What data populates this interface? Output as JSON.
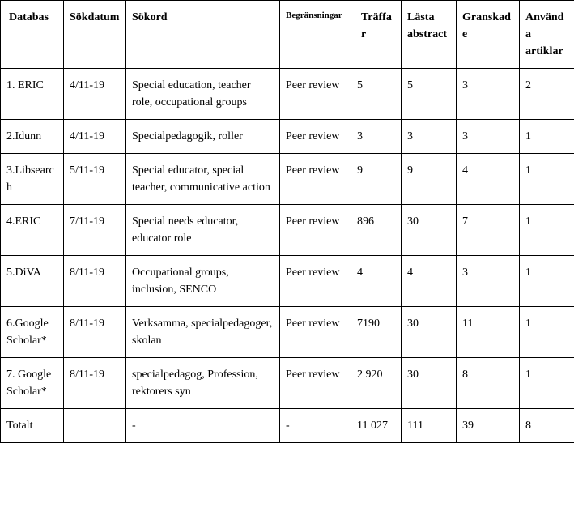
{
  "table": {
    "headers": {
      "databas": "Databas",
      "sokdatum": "Sökdatum",
      "sokord": "Sökord",
      "begransningar": "Begränsningar",
      "traffar": " Träffar",
      "lasta_line1": " Lästa",
      "lasta_line2": "abstract",
      "granskade": "Granskade",
      "anvanda_line1": "Använda",
      "anvanda_line2": "artiklar"
    },
    "rows": [
      {
        "databas": "1. ERIC",
        "sokdatum": "4/11-19",
        "sokord": "Special education, teacher role, occupational groups",
        "begransningar": "Peer review",
        "traffar": "5",
        "lasta": "5",
        "granskade": "3",
        "anvanda": "2"
      },
      {
        "databas": "2.Idunn",
        "sokdatum": "4/11-19",
        "sokord": "Specialpedagogik, roller",
        "begransningar": "Peer review",
        "traffar": "3",
        "lasta": "3",
        "granskade": "3",
        "anvanda": "1"
      },
      {
        "databas": "3.Libsearch",
        "sokdatum": "5/11-19",
        "sokord": "Special educator, special teacher, communicative action",
        "begransningar": "Peer review",
        "traffar": "9",
        "lasta": "9",
        "granskade": "4",
        "anvanda": "1"
      },
      {
        "databas": "4.ERIC",
        "sokdatum": "7/11-19",
        "sokord": "Special needs educator, educator role",
        "begransningar": "Peer review",
        "traffar": "896",
        "lasta": "30",
        "granskade": "7",
        "anvanda": "1"
      },
      {
        "databas": "5.DiVA",
        "sokdatum": "8/11-19",
        "sokord": "Occupational groups, inclusion, SENCO",
        "begransningar": "Peer review",
        "traffar": "4",
        "lasta": "4",
        "granskade": "3",
        "anvanda": "1"
      },
      {
        "databas": "6.Google Scholar*",
        "sokdatum": "8/11-19",
        "sokord": "Verksamma, specialpedagoger, skolan",
        "begransningar": "Peer review",
        "traffar": "7190",
        "lasta": "30",
        "granskade": "11",
        "anvanda": "1"
      },
      {
        "databas": "7.    Google Scholar*",
        "sokdatum": "8/11-19",
        "sokord": "specialpedagog, Profession, rektorers syn",
        "begransningar": "Peer review",
        "traffar": " 2 920",
        "lasta": "30",
        "granskade": "8",
        "anvanda": "1"
      },
      {
        "databas": "Totalt",
        "sokdatum": "",
        "sokord": "-",
        "begransningar": "-",
        "traffar": "11 027",
        "lasta": "111",
        "granskade": "39",
        "anvanda": "8"
      }
    ]
  },
  "style": {
    "background_color": "#ffffff",
    "border_color": "#000000",
    "font_family": "Times New Roman",
    "base_fontsize": 14,
    "small_fontsize": 11
  }
}
